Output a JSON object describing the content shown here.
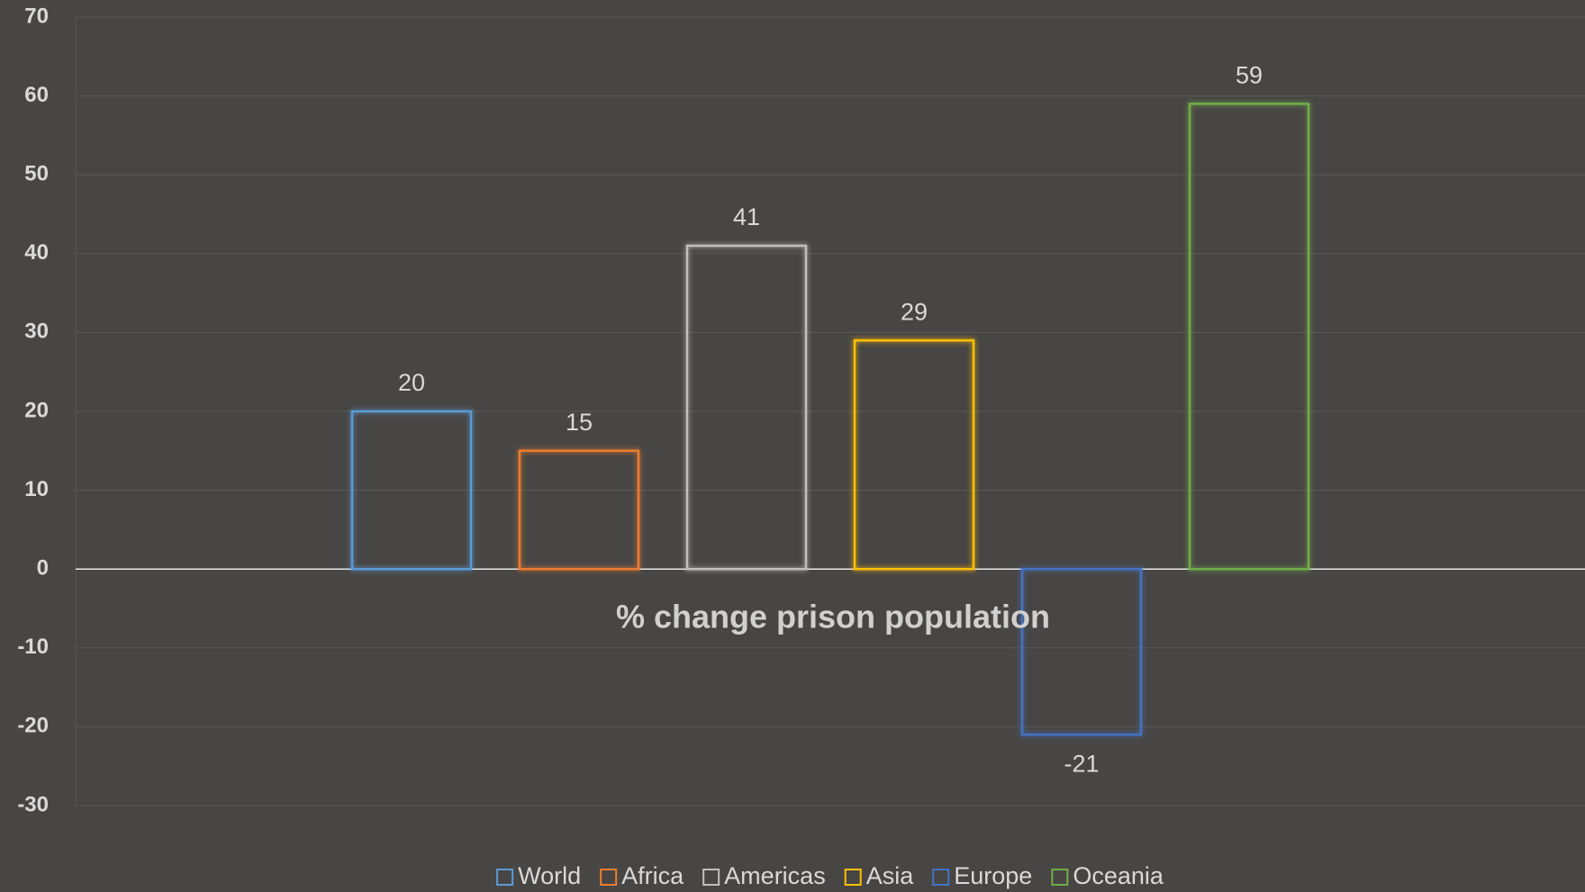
{
  "chart_data": {
    "type": "bar",
    "title": "% change prison population",
    "series": [
      {
        "name": "World",
        "color": "#5b9bd5",
        "values": [
          20
        ]
      },
      {
        "name": "Africa",
        "color": "#ed7d31",
        "values": [
          15
        ]
      },
      {
        "name": "Americas",
        "color": "#bfbfbf",
        "values": [
          41
        ]
      },
      {
        "name": "Asia",
        "color": "#ffc000",
        "values": [
          29
        ]
      },
      {
        "name": "Europe",
        "color": "#4472c4",
        "values": [
          -21
        ]
      },
      {
        "name": "Oceania",
        "color": "#70ad47",
        "values": [
          59
        ]
      }
    ],
    "ylim": [
      -30,
      70
    ],
    "yticks": [
      -30,
      -20,
      -10,
      0,
      10,
      20,
      30,
      40,
      50,
      60,
      70
    ],
    "grid": true,
    "legend": "bottom"
  }
}
